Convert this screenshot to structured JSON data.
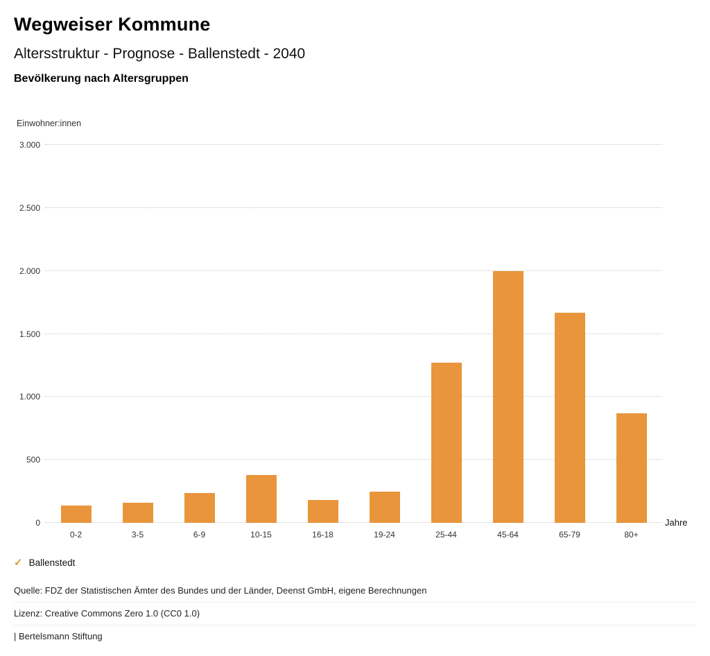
{
  "page": {
    "title": "Wegweiser Kommune",
    "subtitle": "Altersstruktur - Prognose - Ballenstedt - 2040",
    "chart_heading": "Bevölkerung nach Altersgruppen"
  },
  "chart_data": {
    "type": "bar",
    "title": "Bevölkerung nach Altersgruppen",
    "ylabel": "Einwohner:innen",
    "xlabel": "Jahre",
    "categories": [
      "0-2",
      "3-5",
      "6-9",
      "10-15",
      "16-18",
      "19-24",
      "25-44",
      "45-64",
      "65-79",
      "80+"
    ],
    "series": [
      {
        "name": "Ballenstedt",
        "values": [
          140,
          160,
          235,
          380,
          180,
          250,
          1270,
          2000,
          1670,
          870
        ]
      }
    ],
    "ylim": [
      0,
      3000
    ],
    "ytick_step": 500,
    "ytick_labels": [
      "0",
      "500",
      "1.000",
      "1.500",
      "2.000",
      "2.500",
      "3.000"
    ],
    "bar_color": "#E9953C",
    "grid": true,
    "legend_position": "bottom"
  },
  "legend": {
    "check_icon": "✓",
    "label": "Ballenstedt",
    "accent_color": "#E9953C"
  },
  "footer": {
    "source": "Quelle: FDZ der Statistischen Ämter des Bundes und der Länder, Deenst GmbH, eigene Berechnungen",
    "license": "Lizenz: Creative Commons Zero 1.0 (CC0 1.0)",
    "brand": "| Bertelsmann Stiftung"
  }
}
